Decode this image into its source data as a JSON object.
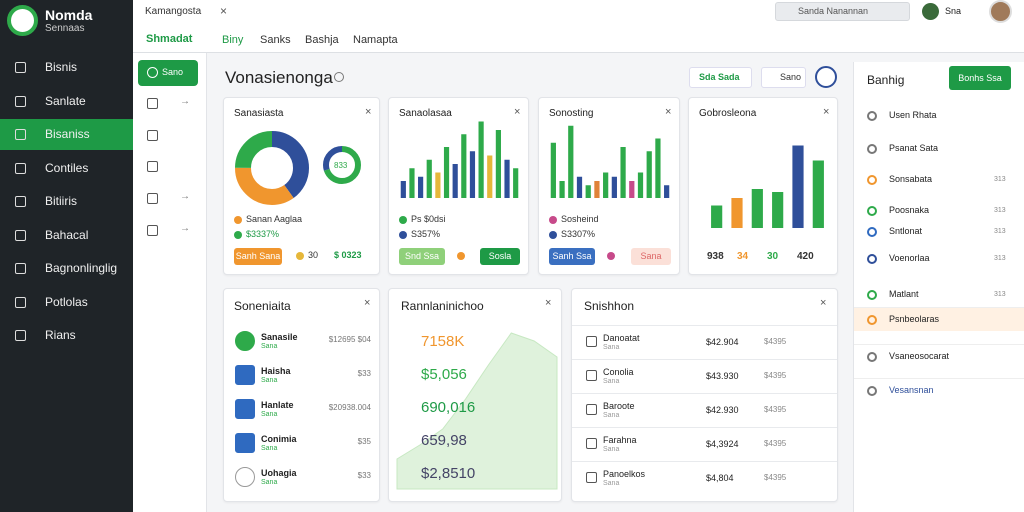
{
  "brand": {
    "name": "Nomda",
    "sub": "Sennaas"
  },
  "topbar": {
    "breadcrumb": "Kamangosta",
    "search": "Sanda Nanannan",
    "user": "Sna"
  },
  "subnav": {
    "section": "Shmadat",
    "tabs": [
      "Biny",
      "Sanks",
      "Bashja",
      "Namapta"
    ]
  },
  "sidebar": {
    "items": [
      "Bisnis",
      "Sanlate",
      "Bisaniss",
      "Contiles",
      "Bitiiris",
      "Bahacal",
      "Bagnonlinglig",
      "Potlolas",
      "Rians"
    ],
    "active": 2
  },
  "panel": {
    "button": "Sano"
  },
  "page": {
    "title": "Vonasienonga",
    "actions": [
      "Sda Sada",
      "Sano"
    ]
  },
  "cards": [
    {
      "title": "Sanasiasta",
      "donut": {
        "values": [
          40,
          35,
          25
        ],
        "colors": [
          "#2f4f9a",
          "#f0962e",
          "#2eaa4a"
        ]
      },
      "mini": {
        "values": [
          70,
          30
        ],
        "colors": [
          "#2eaa4a",
          "#2f4f9a"
        ],
        "label": "833"
      },
      "legend": [
        "Sanan Aaglaa",
        "$3337%"
      ],
      "buttons": [
        "Sanh Sana",
        "30",
        "$ 0323"
      ]
    },
    {
      "title": "Sanaolasaa",
      "bars": {
        "values": [
          20,
          35,
          25,
          45,
          30,
          60,
          40,
          75,
          55,
          90,
          50,
          80,
          45,
          35
        ],
        "colors": [
          "#2f4f9a",
          "#2eaa4a",
          "#2f4f9a",
          "#2eaa4a",
          "#e6b73a",
          "#2eaa4a",
          "#2f4f9a",
          "#2eaa4a",
          "#2f4f9a",
          "#2eaa4a",
          "#e6b73a",
          "#2eaa4a",
          "#2f4f9a",
          "#2eaa4a"
        ]
      },
      "legend": [
        "Ps $0dsi",
        "S357%"
      ],
      "buttons": [
        "Snd Ssa",
        "Sosla"
      ]
    },
    {
      "title": "Sonosting",
      "bars": {
        "values": [
          65,
          20,
          85,
          25,
          15,
          20,
          30,
          25,
          60,
          20,
          30,
          55,
          70,
          15
        ],
        "colors": [
          "#2eaa4a",
          "#2eaa4a",
          "#2eaa4a",
          "#2f4f9a",
          "#2eaa4a",
          "#e0833a",
          "#2eaa4a",
          "#2f4f9a",
          "#2eaa4a",
          "#c74a8a",
          "#2eaa4a",
          "#2eaa4a",
          "#2eaa4a",
          "#2f4f9a"
        ]
      },
      "legend": [
        "Sosheind",
        "S3307%"
      ],
      "buttons": [
        "Sanh Ssa",
        "Sana"
      ]
    },
    {
      "title": "Gobrosleona",
      "bars": {
        "values": [
          30,
          40,
          52,
          48,
          110,
          90
        ],
        "colors": [
          "#2eaa4a",
          "#f0962e",
          "#2eaa4a",
          "#2eaa4a",
          "#2f4f9a",
          "#2eaa4a"
        ]
      },
      "footer": [
        "938",
        "34",
        "30",
        "420"
      ]
    }
  ],
  "list_card": {
    "title": "Soneniaita",
    "rows": [
      {
        "name": "Sanasile",
        "sub": "Sana",
        "value": "$12695 $04"
      },
      {
        "name": "Haisha",
        "sub": "Sana",
        "value": "$33"
      },
      {
        "name": "Hanlate",
        "sub": "Sana",
        "value": "$20938.004"
      },
      {
        "name": "Conimia",
        "sub": "Sana",
        "value": "$35"
      },
      {
        "name": "Uohagia",
        "sub": "Sana",
        "value": "$33"
      }
    ]
  },
  "trend_card": {
    "title": "Rannlaninichoo",
    "figures": [
      "7158K",
      "$5,056",
      "690,016",
      "659,98",
      "$2,8510"
    ],
    "area": [
      15,
      22,
      30,
      45,
      62,
      78,
      74,
      66
    ]
  },
  "table_card": {
    "title": "Snishhon",
    "rows": [
      [
        "Danoatat",
        "Sana",
        "$42.904",
        "$4395"
      ],
      [
        "Conolia",
        "Sana",
        "$43.930",
        "$4395"
      ],
      [
        "Baroote",
        "Sana",
        "$42.930",
        "$4395"
      ],
      [
        "Farahna",
        "Sana",
        "$4,3924",
        "$4395"
      ],
      [
        "Panoelkos",
        "Sana",
        "$4,804",
        "$4395"
      ]
    ]
  },
  "side_panel": {
    "title": "Banhig",
    "button": "Bonhs Ssa",
    "items": [
      {
        "name": "Usen Rhata"
      },
      {
        "name": "Psanat Sata"
      },
      {
        "name": "Sonsabata",
        "value": "313"
      },
      {
        "name": "Poosnaka",
        "value": "313"
      },
      {
        "name": "Sntlonat",
        "value": "313"
      },
      {
        "name": "Voenorlaa",
        "value": "313"
      },
      {
        "name": "Matlant",
        "value": "313"
      },
      {
        "name": "Psnbeolaras"
      },
      {
        "name": "Vsaneosocarat"
      },
      {
        "name": "Vesansnan"
      }
    ]
  }
}
